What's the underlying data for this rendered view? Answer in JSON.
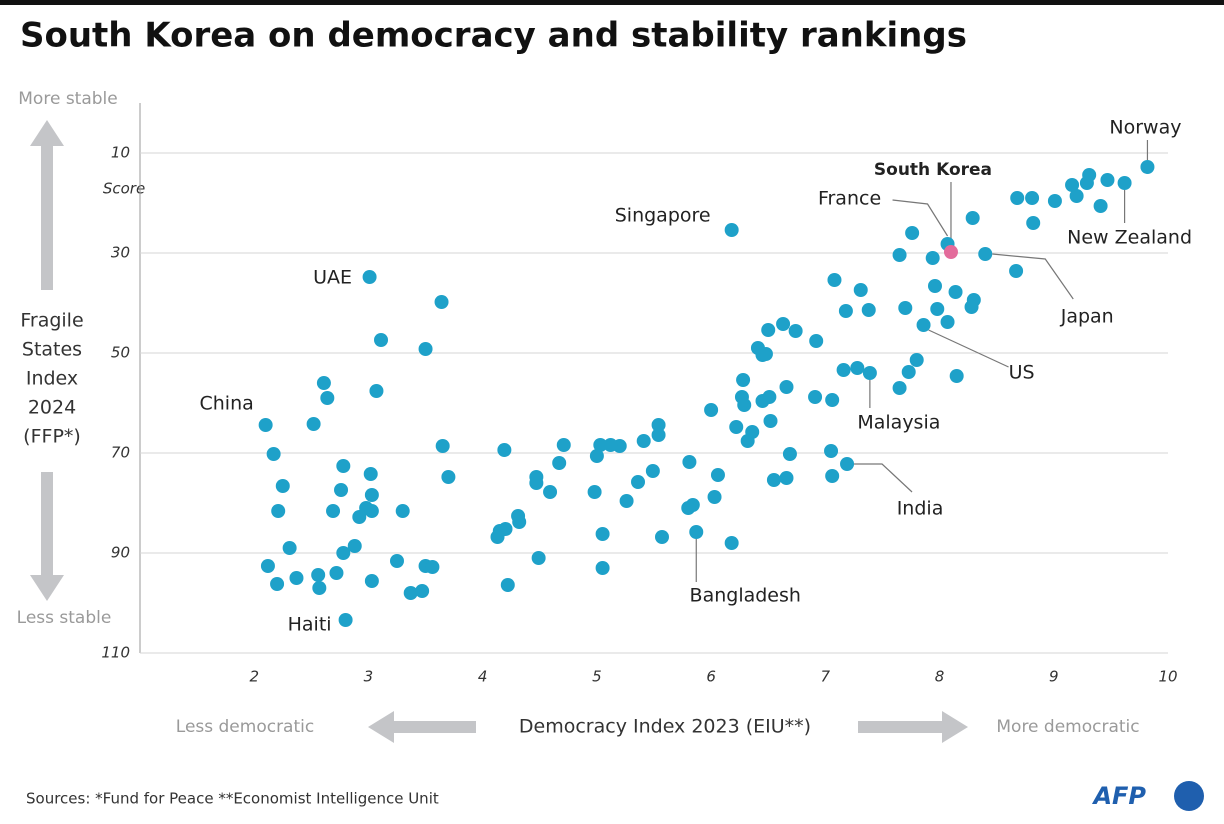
{
  "chart_data": {
    "type": "scatter",
    "title": "South Korea on democracy and stability rankings",
    "x_label": "Democracy Index 2023 (EIU**)",
    "x_left_note": "Less democratic",
    "x_right_note": "More democratic",
    "y_label": [
      "Fragile",
      "States",
      "Index",
      "2024",
      "(FFP*)"
    ],
    "y_top_note": "More stable",
    "y_bottom_note": "Less stable",
    "y_unit": "Score",
    "source": "Sources: *Fund for Peace  **Economist Intelligence Unit",
    "logo": "AFP",
    "xlim": [
      1,
      10
    ],
    "xticks": [
      2,
      3,
      4,
      5,
      6,
      7,
      8,
      9,
      10
    ],
    "ylim": [
      110,
      0
    ],
    "yticks": [
      10,
      30,
      50,
      70,
      90,
      110
    ],
    "grid": true,
    "series": [
      {
        "color": "#1ea1c9",
        "x": [
          8.81,
          8.68,
          9.01,
          9.16,
          9.29,
          9.31,
          9.47,
          9.41,
          9.2,
          8.82,
          8.29,
          7.76,
          7.65,
          7.94,
          8.67,
          7.96,
          8.14,
          8.3,
          8.28,
          7.98,
          7.7,
          8.07,
          7.08,
          7.31,
          7.18,
          7.38,
          7.8,
          7.73,
          8.15,
          7.65,
          7.16,
          7.28,
          7.06,
          6.91,
          6.92,
          6.63,
          6.74,
          6.5,
          6.41,
          6.45,
          6.48,
          6.28,
          6.51,
          6.45,
          6.27,
          6.29,
          6.66,
          6.52,
          6.0,
          6.22,
          6.36,
          6.32,
          6.69,
          7.05,
          7.06,
          6.66,
          6.55,
          6.06,
          5.81,
          6.03,
          5.84,
          5.8,
          6.18,
          5.54,
          5.54,
          5.41,
          5.2,
          5.12,
          5.03,
          5.0,
          5.49,
          5.36,
          5.26,
          4.98,
          4.71,
          4.67,
          4.47,
          4.47,
          4.59,
          4.19,
          4.31,
          4.32,
          4.2,
          4.15,
          4.13,
          5.05,
          5.57,
          5.05,
          4.49,
          4.22,
          3.64,
          3.11,
          3.5,
          3.07,
          3.65,
          3.7,
          2.61,
          2.64,
          2.52,
          2.17,
          2.25,
          2.21,
          2.31,
          2.12,
          2.2,
          2.37,
          2.56,
          2.57,
          2.72,
          2.78,
          2.76,
          3.02,
          3.03,
          2.69,
          2.98,
          3.03,
          2.92,
          2.88,
          2.78,
          3.3,
          3.25,
          3.03,
          3.37,
          3.47,
          3.5,
          3.56
        ],
        "values": [
          19,
          19,
          19.6,
          16.4,
          16,
          14.4,
          15.4,
          20.6,
          18.6,
          24,
          23,
          26,
          30.4,
          31,
          33.6,
          36.6,
          37.8,
          39.4,
          40.8,
          41.2,
          41,
          43.8,
          35.4,
          37.4,
          41.6,
          41.4,
          51.4,
          53.8,
          54.6,
          57,
          53.4,
          53,
          59.4,
          58.8,
          47.6,
          44.2,
          45.6,
          45.4,
          49,
          50.4,
          50.2,
          55.4,
          58.8,
          59.6,
          58.8,
          60.4,
          56.8,
          63.6,
          61.4,
          64.8,
          65.8,
          67.6,
          70.2,
          69.6,
          74.6,
          75,
          75.4,
          74.4,
          71.8,
          78.8,
          80.4,
          81,
          88,
          64.4,
          66.4,
          67.6,
          68.6,
          68.4,
          68.4,
          70.6,
          73.6,
          75.8,
          79.6,
          77.8,
          68.4,
          72,
          74.8,
          76,
          77.8,
          69.4,
          82.6,
          83.8,
          85.2,
          85.6,
          86.8,
          86.2,
          86.8,
          93,
          91,
          96.4,
          39.8,
          47.4,
          49.2,
          57.6,
          68.6,
          74.8,
          56,
          59,
          64.2,
          70.2,
          76.6,
          81.6,
          89,
          92.6,
          96.2,
          95,
          94.4,
          97,
          94,
          72.6,
          77.4,
          74.2,
          78.4,
          81.6,
          81,
          81.6,
          82.8,
          88.6,
          90,
          81.6,
          91.6,
          95.6,
          98,
          97.6,
          92.6,
          92.8
        ]
      },
      {
        "color": "#1ea1c9",
        "labels": [
          "Norway",
          "France",
          "Japan",
          "New Zealand",
          "US",
          "Malaysia",
          "India",
          "Bangladesh",
          "Singapore",
          "UAE",
          "China",
          "Haiti"
        ],
        "x": [
          9.82,
          8.07,
          8.4,
          9.62,
          7.86,
          7.39,
          7.19,
          5.87,
          6.18,
          3.01,
          2.1,
          2.8
        ],
        "values": [
          12.8,
          28.2,
          30.2,
          16,
          44.4,
          54,
          72.2,
          85.8,
          25.4,
          34.8,
          64.4,
          103.4
        ]
      },
      {
        "color": "#e36b9b",
        "bold": true,
        "labels": [
          "South Korea"
        ],
        "x": [
          8.1
        ],
        "values": [
          29.8
        ]
      }
    ]
  }
}
